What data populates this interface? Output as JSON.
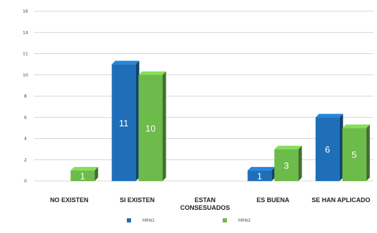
{
  "chart_data": {
    "type": "bar",
    "categories": [
      "NO EXISTEN",
      "SI EXISTEN",
      "ESTAN CONSESUADOS",
      "ES BUENA",
      "SE HAN APLICADO"
    ],
    "series": [
      {
        "name": "MRN1",
        "values": [
          0,
          11,
          0,
          1,
          6
        ],
        "labels": [
          "",
          "11",
          "",
          "1",
          "6"
        ],
        "color": "#1f6fb8"
      },
      {
        "name": "MRN2",
        "values": [
          1,
          10,
          0,
          3,
          5
        ],
        "labels": [
          "1",
          "10",
          "",
          "3",
          "5"
        ],
        "color": "#6dbb4a"
      }
    ],
    "yticks": [
      "0",
      "2",
      "4",
      "6",
      "8",
      "10",
      "11",
      "14",
      "16"
    ],
    "ylim": [
      0,
      16
    ],
    "grid": true,
    "legend": "bottom"
  }
}
